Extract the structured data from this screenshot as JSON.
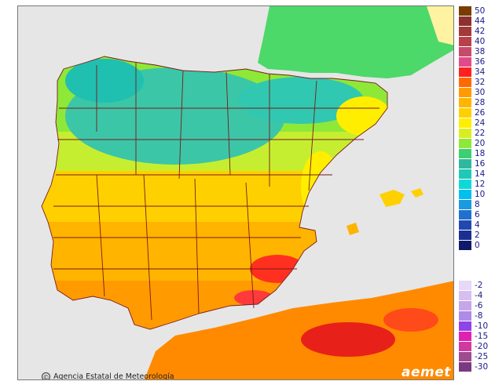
{
  "map": {
    "credit": "Agencia Estatal de Meteorología",
    "logo": "aemet",
    "copyright_symbol": "©"
  },
  "legend": {
    "top_group": [
      {
        "label": "50",
        "color": "#7a3c00"
      },
      {
        "label": "44",
        "color": "#8c3030"
      },
      {
        "label": "42",
        "color": "#a33a3a"
      },
      {
        "label": "40",
        "color": "#b8404a"
      },
      {
        "label": "38",
        "color": "#c84a6a"
      },
      {
        "label": "36",
        "color": "#e04a8a"
      },
      {
        "label": "34",
        "color": "#ff2020"
      },
      {
        "label": "32",
        "color": "#ff6a00"
      },
      {
        "label": "30",
        "color": "#ff9a00"
      },
      {
        "label": "28",
        "color": "#ffb400"
      },
      {
        "label": "26",
        "color": "#ffd000"
      },
      {
        "label": "24",
        "color": "#ffee00"
      },
      {
        "label": "22",
        "color": "#d8ee20"
      },
      {
        "label": "20",
        "color": "#8ee838"
      },
      {
        "label": "18",
        "color": "#3cd070"
      },
      {
        "label": "16",
        "color": "#2fb8a0"
      },
      {
        "label": "14",
        "color": "#20c8b8"
      },
      {
        "label": "12",
        "color": "#10d8d8"
      },
      {
        "label": "10",
        "color": "#00c0f0"
      },
      {
        "label": "8",
        "color": "#1a9ae0"
      },
      {
        "label": "6",
        "color": "#2070d0"
      },
      {
        "label": "4",
        "color": "#2048b0"
      },
      {
        "label": "2",
        "color": "#1a2f90"
      },
      {
        "label": "0",
        "color": "#101a6a"
      }
    ],
    "bottom_group": [
      {
        "label": "-2",
        "color": "#e6d8f6"
      },
      {
        "label": "-4",
        "color": "#d6bef0"
      },
      {
        "label": "-6",
        "color": "#c6a6ea"
      },
      {
        "label": "-8",
        "color": "#b08ae8"
      },
      {
        "label": "-10",
        "color": "#8e44ea"
      },
      {
        "label": "-15",
        "color": "#e020b0"
      },
      {
        "label": "-20",
        "color": "#d03aa0"
      },
      {
        "label": "-25",
        "color": "#a04a90"
      },
      {
        "label": "-30",
        "color": "#7a3a80"
      }
    ]
  }
}
